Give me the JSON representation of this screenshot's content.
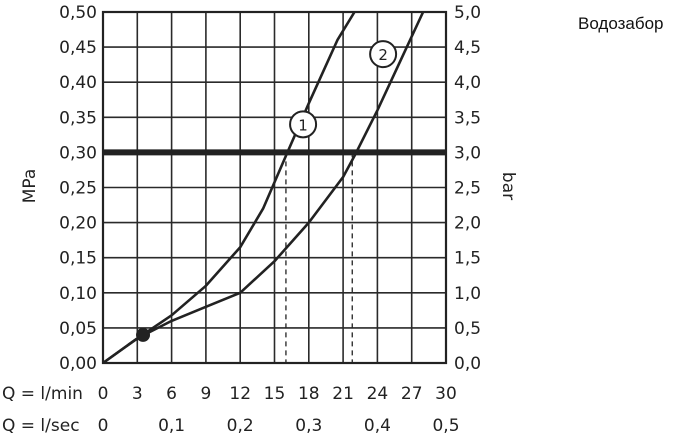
{
  "title": "Водозабор",
  "chart_data": {
    "type": "line",
    "title": "Водозабор",
    "y_left": {
      "label": "MPa",
      "range": [
        0,
        0.5
      ],
      "ticks": [
        "0,00",
        "0,05",
        "0,10",
        "0,15",
        "0,20",
        "0,25",
        "0,30",
        "0,35",
        "0,40",
        "0,45",
        "0,50"
      ]
    },
    "y_right": {
      "label": "bar",
      "range": [
        0,
        5
      ],
      "ticks": [
        "0,0",
        "0,5",
        "1,0",
        "1,5",
        "2,0",
        "2,5",
        "3,0",
        "3,5",
        "4,0",
        "4,5",
        "5,0"
      ]
    },
    "x_primary": {
      "label": "Q = l/min",
      "range": [
        0,
        30
      ],
      "ticks": [
        "0",
        "3",
        "6",
        "9",
        "12",
        "15",
        "18",
        "21",
        "24",
        "27",
        "30"
      ]
    },
    "x_secondary": {
      "label": "Q = l/sec",
      "ticks": [
        "0",
        "0,1",
        "0,2",
        "0,3",
        "0,4",
        "0,5"
      ]
    },
    "grid": true,
    "reference_line": {
      "y_mpa": 0.3
    },
    "series": [
      {
        "name": "1",
        "x": [
          0,
          3,
          6,
          9,
          12,
          14,
          16,
          18,
          20.5,
          22
        ],
        "y": [
          0,
          0.035,
          0.068,
          0.11,
          0.165,
          0.22,
          0.295,
          0.37,
          0.46,
          0.5
        ],
        "crossing_at_ref": 16.0
      },
      {
        "name": "2",
        "x": [
          0,
          3,
          6,
          9,
          12,
          15,
          18,
          21,
          22,
          24,
          26,
          28
        ],
        "y": [
          0,
          0.035,
          0.06,
          0.08,
          0.1,
          0.145,
          0.2,
          0.265,
          0.295,
          0.36,
          0.43,
          0.5
        ],
        "crossing_at_ref": 21.8
      }
    ],
    "point_marker": {
      "x": 3.5,
      "y": 0.04
    },
    "marker_labels": [
      {
        "series": "1",
        "x": 17.5,
        "y": 0.34
      },
      {
        "series": "2",
        "x": 24.5,
        "y": 0.44
      }
    ]
  }
}
